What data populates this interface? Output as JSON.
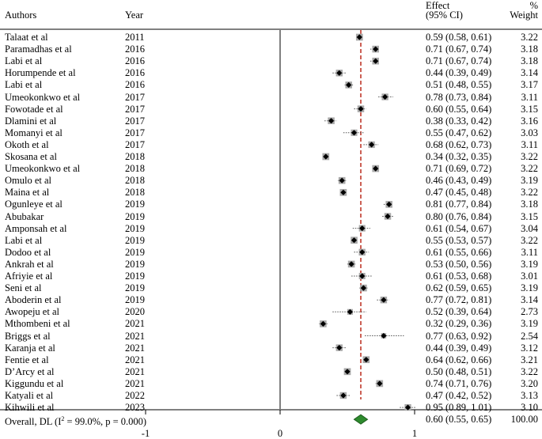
{
  "header": {
    "authors": "Authors",
    "year": "Year",
    "effect_line1": "Effect",
    "effect_line2": "(95% CI)",
    "weight_line1": "%",
    "weight_line2": "Weight"
  },
  "chart_data": {
    "type": "forest",
    "x_ticks": [
      {
        "value": -1,
        "label": "-1"
      },
      {
        "value": 0,
        "label": "0"
      },
      {
        "value": 1,
        "label": "1"
      }
    ],
    "null_line": 0,
    "overall_line": 0.6,
    "studies": [
      {
        "author": "Talaat et al",
        "year": "2011",
        "effect": 0.59,
        "lo": 0.58,
        "hi": 0.61,
        "ci_text": "0.59 (0.58, 0.61)",
        "weight": "3.22"
      },
      {
        "author": "Paramadhas  et al",
        "year": "2016",
        "effect": 0.71,
        "lo": 0.67,
        "hi": 0.74,
        "ci_text": "0.71 (0.67, 0.74)",
        "weight": "3.18"
      },
      {
        "author": "Labi  et al",
        "year": "2016",
        "effect": 0.71,
        "lo": 0.67,
        "hi": 0.74,
        "ci_text": "0.71 (0.67, 0.74)",
        "weight": "3.18"
      },
      {
        "author": "Horumpende et al",
        "year": "2016",
        "effect": 0.44,
        "lo": 0.39,
        "hi": 0.49,
        "ci_text": "0.44 (0.39, 0.49)",
        "weight": "3.14"
      },
      {
        "author": "Labi et al",
        "year": "2016",
        "effect": 0.51,
        "lo": 0.48,
        "hi": 0.55,
        "ci_text": "0.51 (0.48, 0.55)",
        "weight": "3.17"
      },
      {
        "author": "Umeokonkwo et al",
        "year": "2017",
        "effect": 0.78,
        "lo": 0.73,
        "hi": 0.84,
        "ci_text": "0.78 (0.73, 0.84)",
        "weight": "3.11"
      },
      {
        "author": "Fowotade et al",
        "year": "2017",
        "effect": 0.6,
        "lo": 0.55,
        "hi": 0.64,
        "ci_text": "0.60 (0.55, 0.64)",
        "weight": "3.15"
      },
      {
        "author": "Dlamini  et al",
        "year": "2017",
        "effect": 0.38,
        "lo": 0.33,
        "hi": 0.42,
        "ci_text": "0.38 (0.33, 0.42)",
        "weight": "3.16"
      },
      {
        "author": "Momanyi et al",
        "year": "2017",
        "effect": 0.55,
        "lo": 0.47,
        "hi": 0.62,
        "ci_text": "0.55 (0.47, 0.62)",
        "weight": "3.03"
      },
      {
        "author": "Okoth et al",
        "year": "2017",
        "effect": 0.68,
        "lo": 0.62,
        "hi": 0.73,
        "ci_text": "0.68 (0.62, 0.73)",
        "weight": "3.11"
      },
      {
        "author": "Skosana et al",
        "year": "2018",
        "effect": 0.34,
        "lo": 0.32,
        "hi": 0.35,
        "ci_text": "0.34 (0.32, 0.35)",
        "weight": "3.22"
      },
      {
        "author": "Umeokonkwo et al",
        "year": "2018",
        "effect": 0.71,
        "lo": 0.69,
        "hi": 0.72,
        "ci_text": "0.71 (0.69, 0.72)",
        "weight": "3.22"
      },
      {
        "author": "Omulo et al",
        "year": "2018",
        "effect": 0.46,
        "lo": 0.43,
        "hi": 0.49,
        "ci_text": "0.46 (0.43, 0.49)",
        "weight": "3.19"
      },
      {
        "author": "Maina et al",
        "year": "2018",
        "effect": 0.47,
        "lo": 0.45,
        "hi": 0.48,
        "ci_text": "0.47 (0.45, 0.48)",
        "weight": "3.22"
      },
      {
        "author": "Ogunleye et al",
        "year": "2019",
        "effect": 0.81,
        "lo": 0.77,
        "hi": 0.84,
        "ci_text": "0.81 (0.77, 0.84)",
        "weight": "3.18"
      },
      {
        "author": "Abubakar",
        "year": "2019",
        "effect": 0.8,
        "lo": 0.76,
        "hi": 0.84,
        "ci_text": "0.80 (0.76, 0.84)",
        "weight": "3.15"
      },
      {
        "author": "Amponsah  et al",
        "year": "2019",
        "effect": 0.61,
        "lo": 0.54,
        "hi": 0.67,
        "ci_text": "0.61 (0.54, 0.67)",
        "weight": "3.04"
      },
      {
        "author": "Labi et al",
        "year": "2019",
        "effect": 0.55,
        "lo": 0.53,
        "hi": 0.57,
        "ci_text": "0.55 (0.53, 0.57)",
        "weight": "3.22"
      },
      {
        "author": "Dodoo et al",
        "year": "2019",
        "effect": 0.61,
        "lo": 0.55,
        "hi": 0.66,
        "ci_text": "0.61 (0.55, 0.66)",
        "weight": "3.11"
      },
      {
        "author": "Ankrah et al",
        "year": "2019",
        "effect": 0.53,
        "lo": 0.5,
        "hi": 0.56,
        "ci_text": "0.53 (0.50, 0.56)",
        "weight": "3.19"
      },
      {
        "author": "Afriyie et al",
        "year": "2019",
        "effect": 0.61,
        "lo": 0.53,
        "hi": 0.68,
        "ci_text": "0.61 (0.53, 0.68)",
        "weight": "3.01"
      },
      {
        "author": "Seni et al",
        "year": "2019",
        "effect": 0.62,
        "lo": 0.59,
        "hi": 0.65,
        "ci_text": "0.62 (0.59, 0.65)",
        "weight": "3.19"
      },
      {
        "author": "Aboderin et al",
        "year": "2019",
        "effect": 0.77,
        "lo": 0.72,
        "hi": 0.81,
        "ci_text": "0.77 (0.72, 0.81)",
        "weight": "3.14"
      },
      {
        "author": "Awopeju et al",
        "year": "2020",
        "effect": 0.52,
        "lo": 0.39,
        "hi": 0.64,
        "ci_text": "0.52 (0.39, 0.64)",
        "weight": "2.73"
      },
      {
        "author": "Mthombeni et al",
        "year": "2021",
        "effect": 0.32,
        "lo": 0.29,
        "hi": 0.36,
        "ci_text": "0.32 (0.29, 0.36)",
        "weight": "3.19"
      },
      {
        "author": "Briggs et al",
        "year": "2021",
        "effect": 0.77,
        "lo": 0.63,
        "hi": 0.92,
        "ci_text": "0.77 (0.63, 0.92)",
        "weight": "2.54"
      },
      {
        "author": "Karanja  et al",
        "year": "2021",
        "effect": 0.44,
        "lo": 0.39,
        "hi": 0.49,
        "ci_text": "0.44 (0.39, 0.49)",
        "weight": "3.12"
      },
      {
        "author": "Fentie et al",
        "year": "2021",
        "effect": 0.64,
        "lo": 0.62,
        "hi": 0.66,
        "ci_text": "0.64 (0.62, 0.66)",
        "weight": "3.21"
      },
      {
        "author": "D’Arcy et al",
        "year": "2021",
        "effect": 0.5,
        "lo": 0.48,
        "hi": 0.51,
        "ci_text": "0.50 (0.48, 0.51)",
        "weight": "3.22"
      },
      {
        "author": "Kiggundu et al",
        "year": "2021",
        "effect": 0.74,
        "lo": 0.71,
        "hi": 0.76,
        "ci_text": "0.74 (0.71, 0.76)",
        "weight": "3.20"
      },
      {
        "author": "Katyali et al",
        "year": "2022",
        "effect": 0.47,
        "lo": 0.42,
        "hi": 0.52,
        "ci_text": "0.47 (0.42, 0.52)",
        "weight": "3.13"
      },
      {
        "author": "Kihwili et al",
        "year": "2023",
        "effect": 0.95,
        "lo": 0.89,
        "hi": 1.01,
        "ci_text": "0.95 (0.89, 1.01)",
        "weight": "3.10"
      }
    ],
    "overall": {
      "label_pre": "Overall, DL (I",
      "label_sup": "2",
      "label_post": " = 99.0%, p = 0.000)",
      "effect": 0.6,
      "lo": 0.55,
      "hi": 0.65,
      "ci_text": "0.60 (0.55, 0.65)",
      "weight": "100.00"
    },
    "colors": {
      "marker": "#000000",
      "box": "#a9a9a9",
      "overall_line": "#c0392b",
      "overall_diamond": "#2e8b2e"
    }
  }
}
